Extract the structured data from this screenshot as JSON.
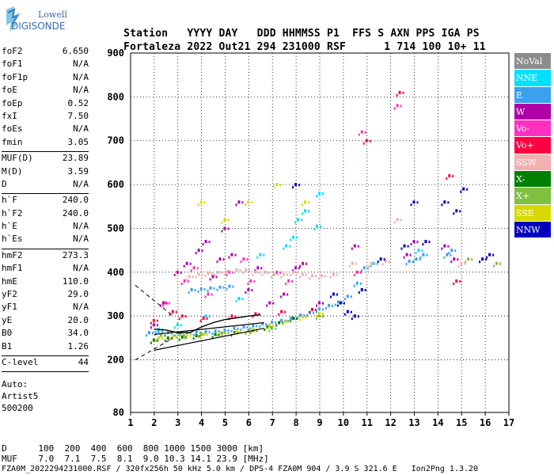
{
  "logo": {
    "line1": "Lowell",
    "line2": "DIGISONDE"
  },
  "header": {
    "line1": [
      "Station",
      "YYYY",
      "DAY",
      "DDD",
      "HHMMSS",
      "P1",
      "FFS",
      "S",
      "AXN",
      "PPS",
      "IGA",
      "PS"
    ],
    "line2": [
      "Fortaleza",
      "2022",
      "Out21",
      "294",
      "231000",
      "RSF",
      "1",
      "714",
      "100",
      "10+",
      "11"
    ]
  },
  "params_groups": [
    [
      [
        "foF2",
        "6.650"
      ],
      [
        "foF1",
        "N/A"
      ],
      [
        "foF1p",
        "N/A"
      ],
      [
        "foE",
        "N/A"
      ],
      [
        "foEp",
        "0.52"
      ],
      [
        "fxI",
        "7.50"
      ],
      [
        "foEs",
        "N/A"
      ],
      [
        "fmin",
        "3.05"
      ]
    ],
    [
      [
        "MUF(D)",
        "23.89"
      ],
      [
        "M(D)",
        "3.59"
      ],
      [
        "D",
        "N/A"
      ]
    ],
    [
      [
        "h`F",
        "240.0"
      ],
      [
        "h`F2",
        "240.0"
      ],
      [
        "h`E",
        "N/A"
      ],
      [
        "h`Es",
        "N/A"
      ]
    ],
    [
      [
        "hmF2",
        "273.3"
      ],
      [
        "hmF1",
        "N/A"
      ],
      [
        "hmE",
        "110.0"
      ],
      [
        "yF2",
        "29.0"
      ],
      [
        "yF1",
        "N/A"
      ],
      [
        "yE",
        "20.0"
      ],
      [
        "B0",
        "34.0"
      ],
      [
        "B1",
        "1.26"
      ]
    ],
    [
      [
        "C-level",
        "44"
      ]
    ]
  ],
  "auto": {
    "line1": "Auto:",
    "line2": "Artist5",
    "line3": "500200"
  },
  "legend": [
    {
      "label": "NoVal",
      "color": "#8c8c8c"
    },
    {
      "label": "NNE",
      "color": "#00e0ff"
    },
    {
      "label": "E",
      "color": "#3aa0f0"
    },
    {
      "label": "W",
      "color": "#b000a8"
    },
    {
      "label": "Vo-",
      "color": "#ff30c0"
    },
    {
      "label": "Vo+",
      "color": "#ff0040"
    },
    {
      "label": "SSW",
      "color": "#f4b0b0"
    },
    {
      "label": "X-",
      "color": "#008000"
    },
    {
      "label": "X+",
      "color": "#80c040"
    },
    {
      "label": "SSE",
      "color": "#d8d800"
    },
    {
      "label": "NNW",
      "color": "#0000c0"
    }
  ],
  "footer": {
    "d_row": "D      100  200  400  600  800 1000 1500 3000 [km]",
    "muf_row": "MUF    7.0  7.1  7.5  8.1  9.0 10.3 14.1 23.9 [MHz]",
    "file_row": "FZA0M_2022294231000.RSF / 320fx256h 50 kHz 5.0 km / DPS-4 FZA0M 904 / 3.9 S 321.6 E   Ion2Png 1.3.20"
  },
  "chart_data": {
    "type": "scatter",
    "title": "",
    "xlabel": "",
    "ylabel": "",
    "xlim": [
      1,
      17
    ],
    "ylim": [
      80,
      900
    ],
    "x_ticks": [
      1,
      2,
      3,
      4,
      5,
      6,
      7,
      8,
      9,
      10,
      11,
      12,
      13,
      14,
      15,
      16,
      17
    ],
    "y_ticks": [
      80,
      200,
      300,
      400,
      500,
      600,
      700,
      800,
      900
    ],
    "grid": true,
    "legend_position": "right",
    "series": [
      {
        "name": "E",
        "color": "#3aa0f0",
        "points": [
          [
            1.8,
            262
          ],
          [
            2.2,
            265
          ],
          [
            2.6,
            262
          ],
          [
            3.0,
            262
          ],
          [
            3.4,
            262
          ],
          [
            3.8,
            263
          ],
          [
            4.2,
            264
          ],
          [
            4.6,
            266
          ],
          [
            5.0,
            268
          ],
          [
            5.4,
            272
          ],
          [
            5.8,
            275
          ],
          [
            6.2,
            278
          ],
          [
            6.6,
            282
          ],
          [
            7.0,
            286
          ],
          [
            7.4,
            290
          ],
          [
            7.8,
            295
          ],
          [
            8.2,
            302
          ],
          [
            8.6,
            308
          ],
          [
            9.0,
            316
          ],
          [
            9.4,
            324
          ],
          [
            9.8,
            332
          ],
          [
            10.2,
            345
          ],
          [
            10.6,
            375
          ],
          [
            10.9,
            410
          ],
          [
            3.6,
            360
          ],
          [
            4.0,
            362
          ],
          [
            4.4,
            364
          ],
          [
            4.8,
            366
          ],
          [
            5.2,
            368
          ],
          [
            12.8,
            425
          ],
          [
            13.1,
            430
          ],
          [
            13.4,
            440
          ],
          [
            14.4,
            440
          ],
          [
            14.6,
            450
          ]
        ]
      },
      {
        "name": "NNE",
        "color": "#00e0ff",
        "points": [
          [
            2.2,
            270
          ],
          [
            3.0,
            280
          ],
          [
            4.2,
            300
          ],
          [
            5.6,
            340
          ],
          [
            6.5,
            440
          ],
          [
            7.6,
            460
          ],
          [
            7.9,
            480
          ],
          [
            8.1,
            520
          ],
          [
            8.4,
            540
          ],
          [
            8.9,
            505
          ],
          [
            9.0,
            580
          ],
          [
            11.3,
            420
          ],
          [
            13.2,
            450
          ]
        ]
      },
      {
        "name": "W",
        "color": "#b000a8",
        "points": [
          [
            2.0,
            280
          ],
          [
            2.4,
            330
          ],
          [
            3.0,
            400
          ],
          [
            3.4,
            420
          ],
          [
            3.9,
            450
          ],
          [
            4.2,
            470
          ],
          [
            4.5,
            390
          ],
          [
            4.8,
            430
          ],
          [
            5.0,
            500
          ],
          [
            5.3,
            440
          ],
          [
            5.6,
            560
          ],
          [
            6.0,
            360
          ],
          [
            6.4,
            410
          ],
          [
            6.9,
            330
          ],
          [
            7.5,
            350
          ],
          [
            8.0,
            410
          ],
          [
            8.3,
            420
          ],
          [
            9.0,
            330
          ],
          [
            10.5,
            460
          ],
          [
            12.7,
            440
          ],
          [
            13.0,
            470
          ],
          [
            14.3,
            460
          ],
          [
            14.7,
            430
          ]
        ]
      },
      {
        "name": "Vo-",
        "color": "#ff30c0",
        "points": [
          [
            2.5,
            330
          ],
          [
            3.3,
            380
          ],
          [
            3.7,
            410
          ],
          [
            4.3,
            350
          ],
          [
            5.2,
            400
          ],
          [
            5.8,
            430
          ],
          [
            6.1,
            380
          ],
          [
            7.2,
            400
          ],
          [
            7.7,
            380
          ],
          [
            10.8,
            720
          ],
          [
            12.3,
            780
          ],
          [
            10.6,
            400
          ]
        ]
      },
      {
        "name": "Vo+",
        "color": "#ff0040",
        "points": [
          [
            2.0,
            290
          ],
          [
            2.8,
            310
          ],
          [
            3.2,
            300
          ],
          [
            4.1,
            295
          ],
          [
            5.3,
            300
          ],
          [
            6.3,
            305
          ],
          [
            7.4,
            310
          ],
          [
            8.7,
            315
          ],
          [
            11.0,
            700
          ],
          [
            12.4,
            810
          ],
          [
            14.5,
            620
          ],
          [
            14.8,
            380
          ]
        ]
      },
      {
        "name": "SSW",
        "color": "#f4b0b0",
        "points": [
          [
            3.5,
            390
          ],
          [
            3.9,
            395
          ],
          [
            4.3,
            398
          ],
          [
            4.7,
            400
          ],
          [
            5.1,
            402
          ],
          [
            5.5,
            405
          ],
          [
            5.9,
            405
          ],
          [
            6.3,
            400
          ],
          [
            6.7,
            400
          ],
          [
            7.1,
            395
          ],
          [
            7.5,
            395
          ],
          [
            7.9,
            400
          ],
          [
            8.3,
            395
          ],
          [
            8.7,
            392
          ],
          [
            9.1,
            392
          ],
          [
            9.6,
            395
          ],
          [
            10.4,
            420
          ],
          [
            11.2,
            420
          ],
          [
            11.8,
            425
          ],
          [
            12.3,
            520
          ],
          [
            15.0,
            420
          ]
        ]
      },
      {
        "name": "X-",
        "color": "#008000",
        "points": [
          [
            2.0,
            245
          ],
          [
            2.6,
            250
          ],
          [
            3.2,
            252
          ],
          [
            3.8,
            255
          ],
          [
            4.6,
            258
          ],
          [
            5.4,
            262
          ],
          [
            6.2,
            268
          ],
          [
            6.8,
            275
          ],
          [
            7.3,
            285
          ],
          [
            7.9,
            295
          ]
        ]
      },
      {
        "name": "X+",
        "color": "#80c040",
        "points": [
          [
            2.3,
            256
          ],
          [
            3.1,
            258
          ],
          [
            4.0,
            260
          ],
          [
            5.0,
            262
          ],
          [
            6.0,
            266
          ],
          [
            7.0,
            272
          ],
          [
            9.0,
            300
          ],
          [
            16.5,
            420
          ],
          [
            15.3,
            430
          ]
        ]
      },
      {
        "name": "SSE",
        "color": "#d8d800",
        "points": [
          [
            2.2,
            250
          ],
          [
            2.8,
            254
          ],
          [
            3.4,
            256
          ],
          [
            4.1,
            258
          ],
          [
            4.8,
            262
          ],
          [
            5.5,
            266
          ],
          [
            6.2,
            270
          ],
          [
            6.9,
            278
          ],
          [
            7.6,
            288
          ],
          [
            8.3,
            298
          ],
          [
            9.0,
            306
          ],
          [
            4.0,
            560
          ],
          [
            5.0,
            520
          ],
          [
            6.0,
            560
          ],
          [
            7.2,
            600
          ],
          [
            8.4,
            560
          ]
        ]
      },
      {
        "name": "NNW",
        "color": "#0000c0",
        "points": [
          [
            8.0,
            600
          ],
          [
            9.6,
            350
          ],
          [
            9.9,
            330
          ],
          [
            10.2,
            310
          ],
          [
            10.5,
            300
          ],
          [
            10.8,
            360
          ],
          [
            11.6,
            430
          ],
          [
            12.6,
            460
          ],
          [
            13.0,
            560
          ],
          [
            13.5,
            470
          ],
          [
            14.3,
            560
          ],
          [
            14.8,
            540
          ],
          [
            15.1,
            590
          ],
          [
            15.9,
            430
          ],
          [
            16.2,
            440
          ]
        ]
      }
    ],
    "profile_curve": [
      [
        2.0,
        270
      ],
      [
        2.5,
        268
      ],
      [
        3.0,
        262
      ],
      [
        3.5,
        262
      ],
      [
        4.0,
        275
      ],
      [
        4.5,
        285
      ],
      [
        5.0,
        292
      ],
      [
        5.5,
        296
      ],
      [
        6.0,
        300
      ],
      [
        6.5,
        303
      ]
    ],
    "lower_bound_line": [
      [
        2.0,
        222
      ],
      [
        6.65,
        272
      ]
    ],
    "upper_bound_line": [
      [
        2.0,
        258
      ],
      [
        6.65,
        285
      ]
    ],
    "dashed_lines": [
      [
        [
          1.2,
          370
        ],
        [
          2.8,
          300
        ]
      ],
      [
        [
          1.2,
          200
        ],
        [
          2.8,
          250
        ]
      ]
    ]
  }
}
